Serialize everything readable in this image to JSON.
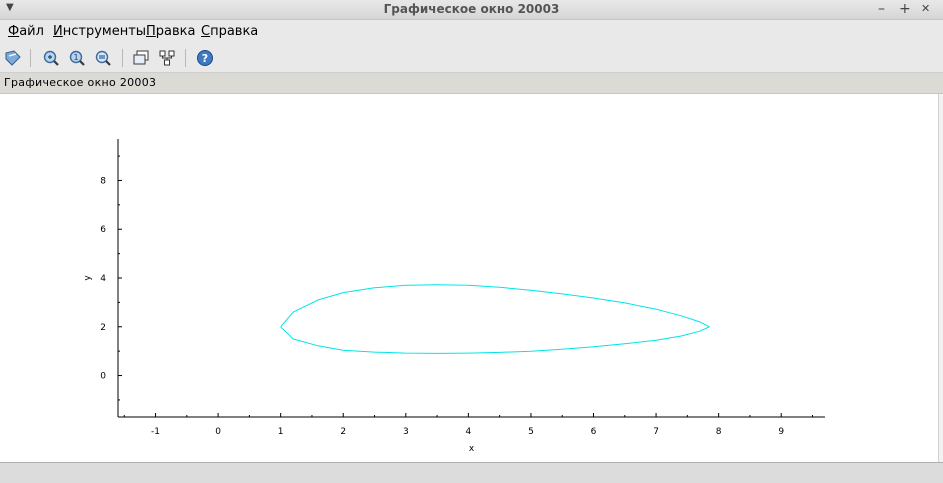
{
  "window": {
    "title": "Графическое окно 20003",
    "menu_glyph": "▼",
    "minimize_glyph": "–",
    "maximize_glyph": "+",
    "close_glyph": "✕"
  },
  "menubar": {
    "items": [
      {
        "mnemonic": "Ф",
        "rest": "айл"
      },
      {
        "mnemonic": "И",
        "rest": "нструменты"
      },
      {
        "mnemonic": "П",
        "rest": "равка"
      },
      {
        "mnemonic": "С",
        "rest": "правка"
      }
    ]
  },
  "toolbar": {
    "icons": [
      "rotate-icon",
      "zoom-icon",
      "zoom-original-icon",
      "datatip-icon",
      "new-window-icon",
      "pointer-icon",
      "help-icon"
    ]
  },
  "infobar": {
    "text": "Графическое окно 20003"
  },
  "colors": {
    "curve": "#00e5e5",
    "axis": "#000000"
  },
  "chart_data": {
    "type": "line",
    "title": "",
    "xlabel": "x",
    "ylabel": "y",
    "xlim": [
      -1.6,
      9.7
    ],
    "ylim": [
      -1.7,
      9.7
    ],
    "x_ticks": [
      -1,
      0,
      1,
      2,
      3,
      4,
      5,
      6,
      7,
      8,
      9
    ],
    "y_ticks": [
      0,
      2,
      4,
      6,
      8
    ],
    "grid": false,
    "series": [
      {
        "color": "#00e5e5",
        "x": [
          1.0,
          1.2,
          1.6,
          2.0,
          2.5,
          3.0,
          3.5,
          4.0,
          4.5,
          5.0,
          5.5,
          6.0,
          6.5,
          7.0,
          7.4,
          7.7,
          7.85,
          7.7,
          7.4,
          7.0,
          6.5,
          6.0,
          5.5,
          5.0,
          4.5,
          4.0,
          3.5,
          3.0,
          2.5,
          2.0,
          1.6,
          1.2,
          1.0
        ],
        "y": [
          2.0,
          2.6,
          3.1,
          3.4,
          3.6,
          3.7,
          3.72,
          3.7,
          3.62,
          3.5,
          3.35,
          3.18,
          2.98,
          2.72,
          2.45,
          2.2,
          2.0,
          1.82,
          1.62,
          1.45,
          1.3,
          1.18,
          1.08,
          1.0,
          0.95,
          0.92,
          0.91,
          0.92,
          0.96,
          1.04,
          1.22,
          1.5,
          2.0
        ]
      }
    ]
  }
}
